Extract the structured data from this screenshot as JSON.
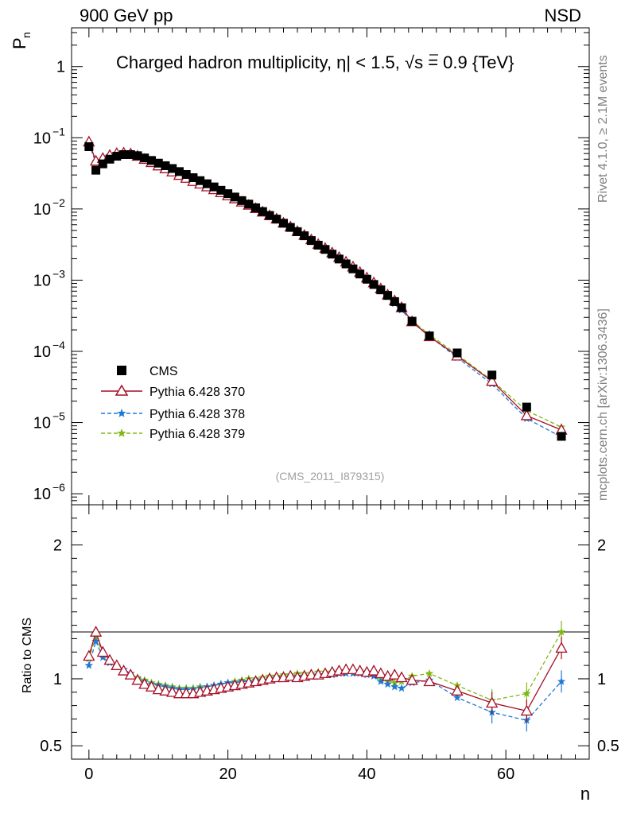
{
  "header": {
    "left": "900 GeV pp",
    "right": "NSD"
  },
  "side": {
    "rivet": "Rivet 4.1.0, ≥ 2.1M events",
    "mcplots": "mcplots.cern.ch [arXiv:1306.3436]"
  },
  "colors": {
    "cms": "#000000",
    "p370": "#a50f25",
    "p378": "#1f78d8",
    "p379": "#80b914"
  },
  "chart_data": {
    "type": "scatter",
    "title": "Charged hadron multiplicity, |η| < 1.5, √s = 0.9 {TeV}",
    "title_parts": {
      "a": "Charged hadron multiplicity, ",
      "eta": "η",
      "b": "| < 1.5, ",
      "sq": "√",
      "s": "s",
      "c": " = 0.9 {TeV}"
    },
    "xlabel": "n",
    "ylabel": {
      "main": "P",
      "sub": "n"
    },
    "ratio_ylabel": "Ratio to CMS",
    "analysis_id": "(CMS_2011_I879315)",
    "xlim": [
      -2.5,
      72
    ],
    "ylim": [
      7e-07,
      3.5
    ],
    "ratio_ylim": [
      0.4,
      2.3
    ],
    "x_ticks": [
      0,
      20,
      40,
      60
    ],
    "x_tick_labels": [
      "0",
      "20",
      "40",
      "60"
    ],
    "y_ticks": [
      {
        "exp": -6,
        "label_base": "10",
        "label_exp": "−6"
      },
      {
        "exp": -5,
        "label_base": "10",
        "label_exp": "−5"
      },
      {
        "exp": -4,
        "label_base": "10",
        "label_exp": "−4"
      },
      {
        "exp": -3,
        "label_base": "10",
        "label_exp": "−3"
      },
      {
        "exp": -2,
        "label_base": "10",
        "label_exp": "−2"
      },
      {
        "exp": -1,
        "label_base": "10",
        "label_exp": "−1"
      },
      {
        "exp": 0,
        "label_base": "1",
        "label_exp": ""
      }
    ],
    "ratio_ticks": [
      {
        "value": 0.5,
        "label": "0.5"
      },
      {
        "value": 1,
        "label": "1"
      },
      {
        "value": 2,
        "label": "2"
      }
    ],
    "x": [
      0,
      1,
      2,
      3,
      4,
      5,
      6,
      7,
      8,
      9,
      10,
      11,
      12,
      13,
      14,
      15,
      16,
      17,
      18,
      19,
      20,
      21,
      22,
      23,
      24,
      25,
      26,
      27,
      28,
      29,
      30,
      31,
      32,
      33,
      34,
      35,
      36,
      37,
      38,
      39,
      40,
      41,
      42,
      43,
      44,
      45,
      46.5,
      49,
      53,
      58,
      63,
      68
    ],
    "cms": [
      0.075,
      0.035,
      0.043,
      0.05,
      0.055,
      0.058,
      0.058,
      0.056,
      0.052,
      0.048,
      0.044,
      0.0405,
      0.037,
      0.0335,
      0.0305,
      0.0275,
      0.025,
      0.0226,
      0.0204,
      0.0183,
      0.0164,
      0.0147,
      0.0131,
      0.0117,
      0.0104,
      0.0092,
      0.0081,
      0.0072,
      0.0063,
      0.0055,
      0.0048,
      0.0042,
      0.0036,
      0.0031,
      0.0027,
      0.00232,
      0.00198,
      0.00169,
      0.00144,
      0.00122,
      0.00103,
      0.00087,
      0.00073,
      0.00061,
      0.0005,
      0.00041,
      0.000265,
      0.000165,
      9.5e-05,
      4.65e-05,
      1.65e-05,
      6.4e-06
    ],
    "series": [
      {
        "name": "Pythia 6.428 370",
        "color": "#a50f25",
        "style": "solid",
        "marker": "triangle",
        "ratio": [
          1.17,
          1.35,
          1.2,
          1.14,
          1.1,
          1.06,
          1.03,
          0.99,
          0.96,
          0.94,
          0.92,
          0.91,
          0.9,
          0.89,
          0.89,
          0.89,
          0.9,
          0.91,
          0.92,
          0.93,
          0.94,
          0.95,
          0.96,
          0.97,
          0.98,
          0.99,
          1.0,
          1.01,
          1.01,
          1.02,
          1.01,
          1.02,
          1.03,
          1.03,
          1.04,
          1.05,
          1.06,
          1.07,
          1.07,
          1.06,
          1.05,
          1.06,
          1.04,
          1.02,
          1.03,
          1.01,
          0.99,
          0.98,
          0.91,
          0.82,
          0.76,
          1.23
        ]
      },
      {
        "name": "Pythia 6.428 378",
        "color": "#1f78d8",
        "style": "dashed",
        "marker": "star",
        "ratio": [
          1.1,
          1.28,
          1.16,
          1.12,
          1.09,
          1.07,
          1.04,
          1.0,
          0.98,
          0.96,
          0.95,
          0.94,
          0.93,
          0.92,
          0.92,
          0.92,
          0.93,
          0.94,
          0.95,
          0.96,
          0.97,
          0.97,
          0.98,
          0.98,
          0.99,
          0.99,
          1.0,
          1.01,
          1.01,
          1.01,
          1.02,
          1.02,
          1.02,
          1.03,
          1.03,
          1.03,
          1.04,
          1.04,
          1.04,
          1.04,
          1.03,
          1.02,
          0.98,
          0.96,
          0.94,
          0.93,
          0.97,
          0.99,
          0.86,
          0.75,
          0.69,
          0.98
        ]
      },
      {
        "name": "Pythia 6.428 379",
        "color": "#80b914",
        "style": "dashed",
        "marker": "star",
        "ratio": [
          1.15,
          1.32,
          1.18,
          1.13,
          1.1,
          1.07,
          1.04,
          1.01,
          0.99,
          0.97,
          0.96,
          0.95,
          0.94,
          0.93,
          0.93,
          0.93,
          0.94,
          0.94,
          0.95,
          0.96,
          0.97,
          0.98,
          0.99,
          1.0,
          1.0,
          1.01,
          1.02,
          1.02,
          1.03,
          1.03,
          1.04,
          1.04,
          1.04,
          1.05,
          1.05,
          1.05,
          1.06,
          1.06,
          1.06,
          1.06,
          1.05,
          1.04,
          1.0,
          0.98,
          0.97,
          0.98,
          1.02,
          1.04,
          0.95,
          0.84,
          0.89,
          1.35
        ]
      }
    ],
    "legend": {
      "placement": "lower-left",
      "cms_label": "CMS"
    }
  }
}
